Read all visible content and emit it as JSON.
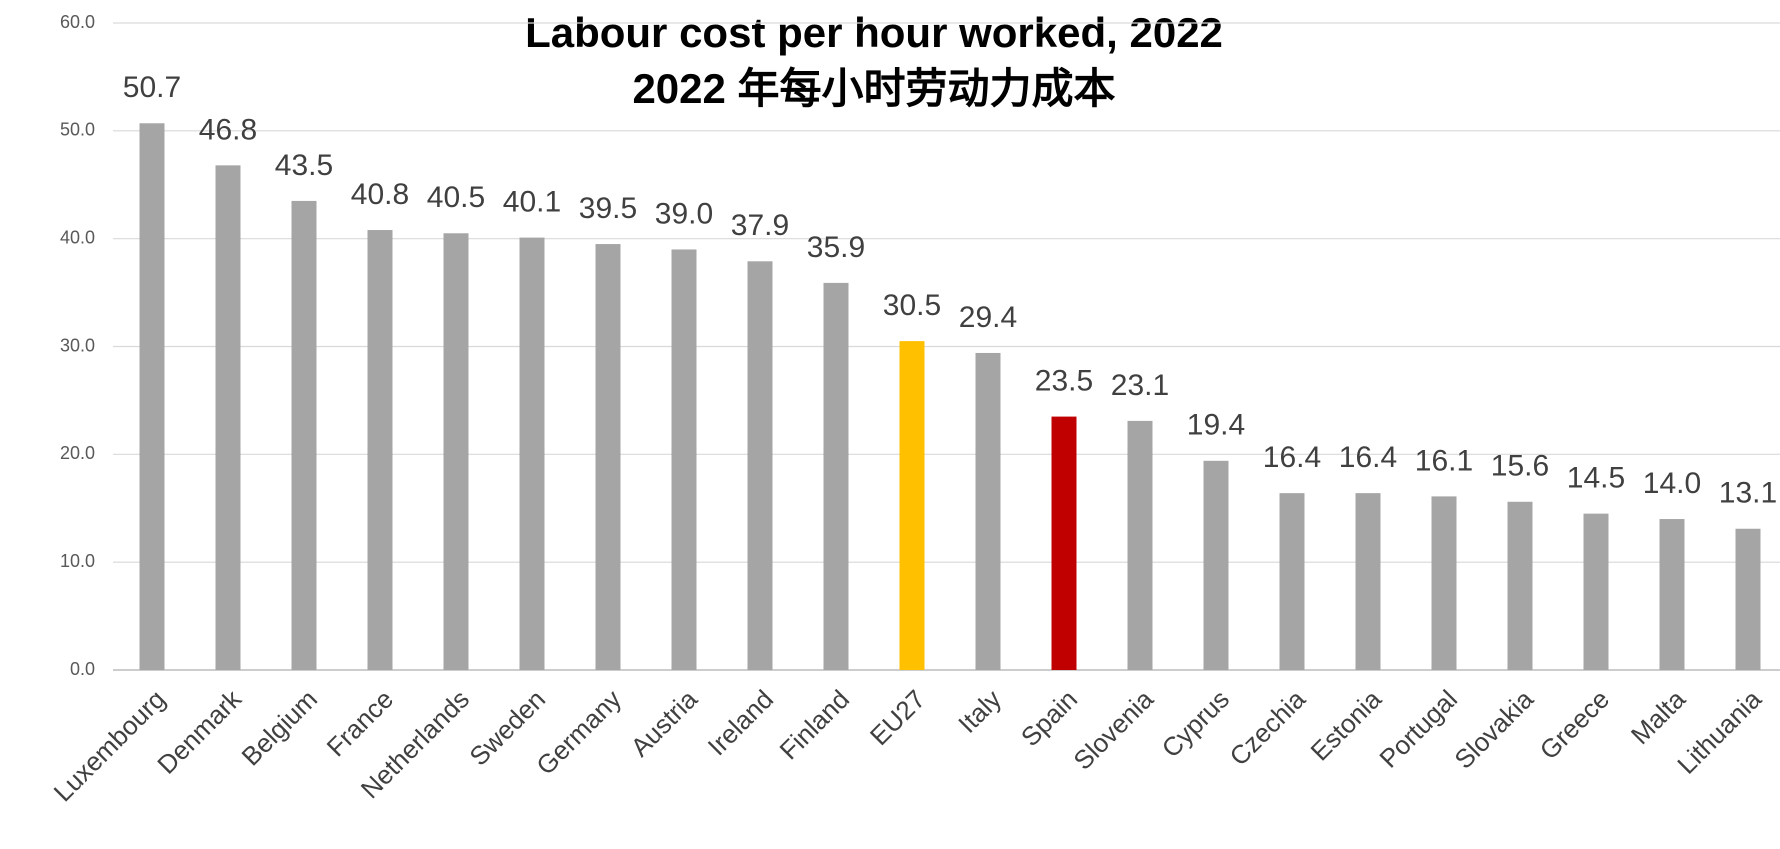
{
  "chart_data": {
    "type": "bar",
    "title": "Labour cost per hour worked, 2022",
    "subtitle": "2022 年每小时劳动力成本",
    "categories": [
      "Luxembourg",
      "Denmark",
      "Belgium",
      "France",
      "Netherlands",
      "Sweden",
      "Germany",
      "Austria",
      "Ireland",
      "Finland",
      "EU27",
      "Italy",
      "Spain",
      "Slovenia",
      "Cyprus",
      "Czechia",
      "Estonia",
      "Portugal",
      "Slovakia",
      "Greece",
      "Malta",
      "Lithuania"
    ],
    "values": [
      50.7,
      46.8,
      43.5,
      40.8,
      40.5,
      40.1,
      39.5,
      39.0,
      37.9,
      35.9,
      30.5,
      29.4,
      23.5,
      23.1,
      19.4,
      16.4,
      16.4,
      16.1,
      15.6,
      14.5,
      14.0,
      13.1
    ],
    "value_labels": [
      "50.7",
      "46.8",
      "43.5",
      "40.8",
      "40.5",
      "40.1",
      "39.5",
      "39.0",
      "37.9",
      "35.9",
      "30.5",
      "29.4",
      "23.5",
      "23.1",
      "19.4",
      "16.4",
      "16.4",
      "16.1",
      "15.6",
      "14.5",
      "14.0",
      "13.1"
    ],
    "colors": [
      "#a5a5a5",
      "#a5a5a5",
      "#a5a5a5",
      "#a5a5a5",
      "#a5a5a5",
      "#a5a5a5",
      "#a5a5a5",
      "#a5a5a5",
      "#a5a5a5",
      "#a5a5a5",
      "#ffc000",
      "#a5a5a5",
      "#c00000",
      "#a5a5a5",
      "#a5a5a5",
      "#a5a5a5",
      "#a5a5a5",
      "#a5a5a5",
      "#a5a5a5",
      "#a5a5a5",
      "#a5a5a5",
      "#a5a5a5"
    ],
    "ylim": [
      0,
      60
    ],
    "yticks": [
      {
        "value": 0,
        "label": "0.0"
      },
      {
        "value": 10,
        "label": "10.0"
      },
      {
        "value": 20,
        "label": "20.0"
      },
      {
        "value": 30,
        "label": "30.0"
      },
      {
        "value": 40,
        "label": "40.0"
      },
      {
        "value": 50,
        "label": "50.0"
      },
      {
        "value": 60,
        "label": "60.0"
      }
    ],
    "grid": true
  }
}
